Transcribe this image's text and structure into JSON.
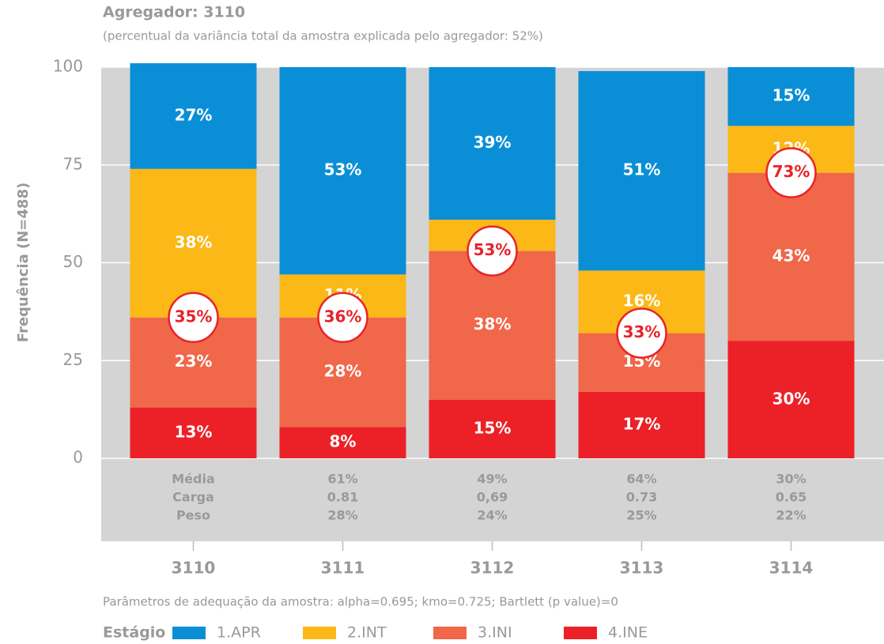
{
  "chart_data": {
    "type": "stacked_bar",
    "title": "Agregador: 3110",
    "subtitle": "(percentual da variância total da amostra explicada pelo agregador: 52%)",
    "y_label": "Frequência (N=488)",
    "categories": [
      "3110",
      "3111",
      "3112",
      "3113",
      "3114"
    ],
    "ylim": [
      0,
      100
    ],
    "yticks": [
      0,
      25,
      50,
      75,
      100
    ],
    "grid": true,
    "series": [
      {
        "name": "4.INE",
        "color": "#ec2127",
        "values": [
          13,
          8,
          15,
          17,
          30
        ],
        "value_labels": [
          "13%",
          "8%",
          "15%",
          "17%",
          "30%"
        ]
      },
      {
        "name": "3.INI",
        "color": "#f0674a",
        "values": [
          23,
          28,
          38,
          15,
          43
        ],
        "value_labels": [
          "23%",
          "28%",
          "38%",
          "15%",
          "43%"
        ]
      },
      {
        "name": "2.INT",
        "color": "#fbb817",
        "values": [
          38,
          11,
          8,
          16,
          12
        ],
        "value_labels": [
          "38%",
          "11%",
          "8%",
          "16%",
          "12%"
        ]
      },
      {
        "name": "1.APR",
        "color": "#0a8fd6",
        "values": [
          27,
          53,
          39,
          51,
          15
        ],
        "value_labels": [
          "27%",
          "53%",
          "39%",
          "51%",
          "15%"
        ]
      }
    ],
    "circle_values": [
      35,
      36,
      53,
      33,
      73
    ],
    "circle_labels": [
      "35%",
      "36%",
      "53%",
      "33%",
      "73%"
    ],
    "table": {
      "row_labels": [
        "Média",
        "Carga",
        "Peso"
      ],
      "rows": [
        [
          "61%",
          "49%",
          "64%",
          "30%"
        ],
        [
          "0.81",
          "0,69",
          "0.73",
          "0.65"
        ],
        [
          "28%",
          "24%",
          "25%",
          "22%"
        ]
      ]
    },
    "note": "Parâmetros de adequação da amostra: alpha=0.695; kmo=0.725; Bartlett (p value)=0",
    "legend_title": "Estágio"
  }
}
